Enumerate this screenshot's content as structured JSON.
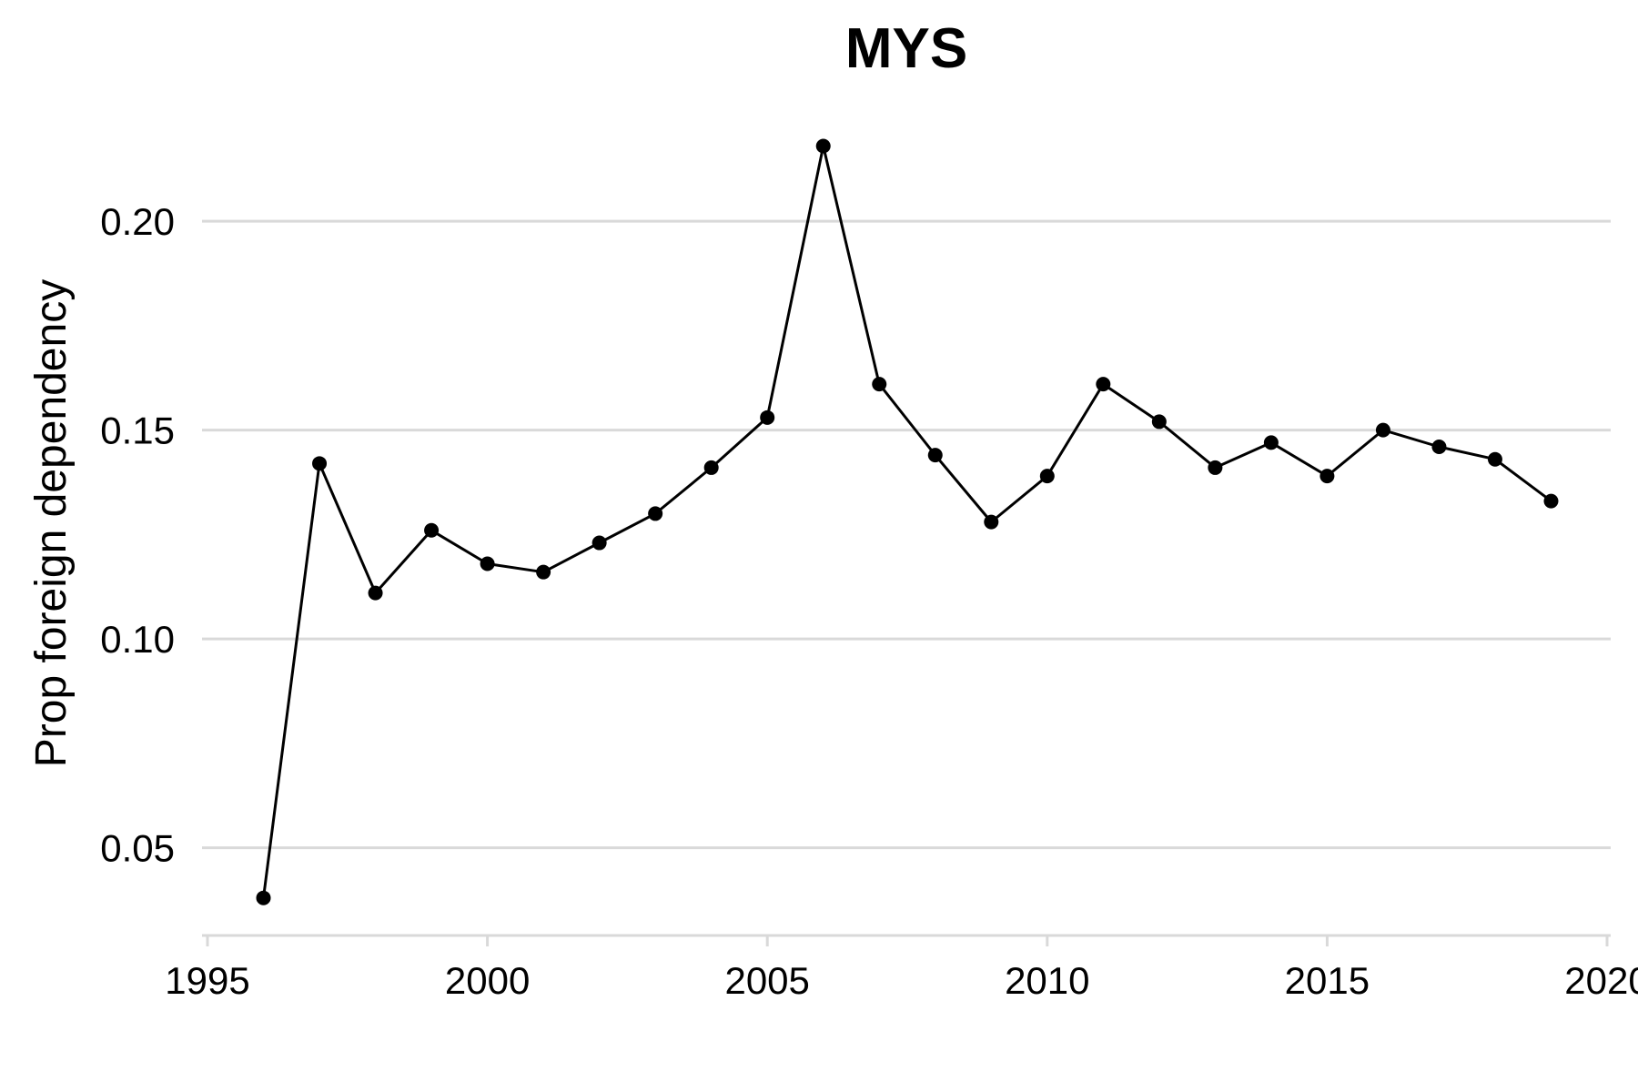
{
  "chart_data": {
    "type": "line",
    "title": "MYS",
    "xlabel": "",
    "ylabel": "Prop foreign dependency",
    "xlim": [
      1995,
      2020
    ],
    "ylim": [
      0.029,
      0.229
    ],
    "x_ticks": [
      1995,
      2000,
      2005,
      2010,
      2015,
      2020
    ],
    "y_ticks": [
      0.05,
      0.1,
      0.15,
      0.2
    ],
    "y_tick_labels": [
      "0.05",
      "0.10",
      "0.15",
      "0.20"
    ],
    "grid": "horizontal",
    "series": [
      {
        "x": [
          1996,
          1997,
          1998,
          1999,
          2000,
          2001,
          2002,
          2003,
          2004,
          2005,
          2006,
          2007,
          2008,
          2009,
          2010,
          2011,
          2012,
          2013,
          2014,
          2015,
          2016,
          2017,
          2018,
          2019
        ],
        "values": [
          0.038,
          0.142,
          0.111,
          0.126,
          0.118,
          0.116,
          0.123,
          0.13,
          0.141,
          0.153,
          0.218,
          0.161,
          0.144,
          0.128,
          0.139,
          0.161,
          0.152,
          0.141,
          0.147,
          0.139,
          0.15,
          0.146,
          0.143,
          0.133
        ],
        "color": "#000000"
      }
    ]
  }
}
